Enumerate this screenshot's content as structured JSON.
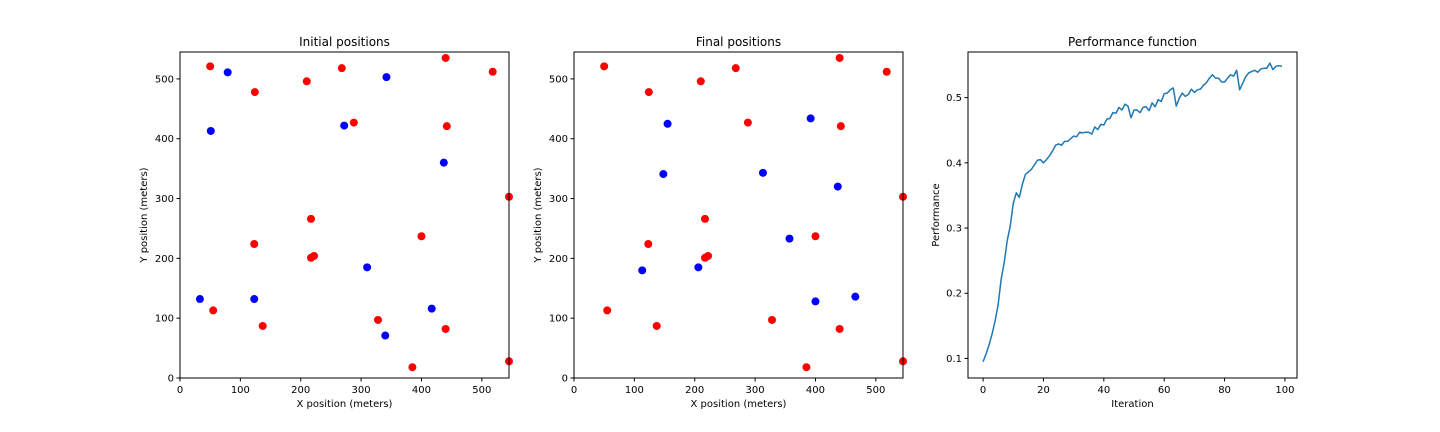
{
  "chart_data": [
    {
      "type": "scatter",
      "title": "Initial positions",
      "xlabel": "X position (meters)",
      "ylabel": "Y position (meters)",
      "xlim": [
        0,
        545
      ],
      "ylim": [
        0,
        545
      ],
      "xticks": [
        0,
        100,
        200,
        300,
        400,
        500
      ],
      "yticks": [
        0,
        100,
        200,
        300,
        400,
        500
      ],
      "grid": false,
      "series": [
        {
          "color": "#ff0000",
          "points": [
            [
              50,
              521
            ],
            [
              124,
              478
            ],
            [
              210,
              496
            ],
            [
              268,
              518
            ],
            [
              440,
              535
            ],
            [
              518,
              512
            ],
            [
              288,
              427
            ],
            [
              442,
              421
            ],
            [
              545,
              303
            ],
            [
              217,
              266
            ],
            [
              123,
              224
            ],
            [
              400,
              237
            ],
            [
              217,
              201
            ],
            [
              222,
              204
            ],
            [
              55,
              113
            ],
            [
              137,
              87
            ],
            [
              328,
              97
            ],
            [
              440,
              82
            ],
            [
              385,
              18
            ],
            [
              545,
              28
            ]
          ]
        },
        {
          "color": "#0000ff",
          "points": [
            [
              79,
              511
            ],
            [
              342,
              503
            ],
            [
              51,
              413
            ],
            [
              272,
              422
            ],
            [
              437,
              360
            ],
            [
              310,
              185
            ],
            [
              33,
              132
            ],
            [
              123,
              132
            ],
            [
              417,
              116
            ],
            [
              340,
              71
            ]
          ]
        }
      ]
    },
    {
      "type": "scatter",
      "title": "Final positions",
      "xlabel": "X position (meters)",
      "ylabel": "Y position (meters)",
      "xlim": [
        0,
        545
      ],
      "ylim": [
        0,
        545
      ],
      "xticks": [
        0,
        100,
        200,
        300,
        400,
        500
      ],
      "yticks": [
        0,
        100,
        200,
        300,
        400,
        500
      ],
      "grid": false,
      "series": [
        {
          "color": "#ff0000",
          "points": [
            [
              50,
              521
            ],
            [
              124,
              478
            ],
            [
              210,
              496
            ],
            [
              268,
              518
            ],
            [
              440,
              535
            ],
            [
              518,
              512
            ],
            [
              288,
              427
            ],
            [
              442,
              421
            ],
            [
              545,
              303
            ],
            [
              217,
              266
            ],
            [
              123,
              224
            ],
            [
              400,
              237
            ],
            [
              217,
              201
            ],
            [
              222,
              204
            ],
            [
              55,
              113
            ],
            [
              137,
              87
            ],
            [
              328,
              97
            ],
            [
              440,
              82
            ],
            [
              385,
              18
            ],
            [
              545,
              28
            ]
          ]
        },
        {
          "color": "#0000ff",
          "points": [
            [
              155,
              425
            ],
            [
              392,
              434
            ],
            [
              148,
              341
            ],
            [
              313,
              343
            ],
            [
              437,
              320
            ],
            [
              357,
              233
            ],
            [
              113,
              180
            ],
            [
              206,
              185
            ],
            [
              466,
              136
            ],
            [
              400,
              128
            ]
          ]
        }
      ]
    },
    {
      "type": "line",
      "title": "Performance function",
      "xlabel": "Iteration",
      "ylabel": "Performance",
      "xlim": [
        -5,
        104
      ],
      "ylim": [
        0.07,
        0.57
      ],
      "xticks": [
        0,
        20,
        40,
        60,
        80,
        100
      ],
      "yticks": [
        0.1,
        0.2,
        0.3,
        0.4,
        0.5
      ],
      "grid": false,
      "series": [
        {
          "color": "#1f77b4",
          "x": [
            0,
            1,
            2,
            3,
            4,
            5,
            6,
            7,
            8,
            9,
            10,
            11,
            12,
            13,
            14,
            15,
            16,
            17,
            18,
            19,
            20,
            21,
            22,
            23,
            24,
            25,
            26,
            27,
            28,
            29,
            30,
            31,
            32,
            33,
            34,
            35,
            36,
            37,
            38,
            39,
            40,
            41,
            42,
            43,
            44,
            45,
            46,
            47,
            48,
            49,
            50,
            51,
            52,
            53,
            54,
            55,
            56,
            57,
            58,
            59,
            60,
            61,
            62,
            63,
            64,
            65,
            66,
            67,
            68,
            69,
            70,
            71,
            72,
            73,
            74,
            75,
            76,
            77,
            78,
            79,
            80,
            81,
            82,
            83,
            84,
            85,
            86,
            87,
            88,
            89,
            90,
            91,
            92,
            93,
            94,
            95,
            96,
            97,
            98,
            99
          ],
          "y": [
            0.095,
            0.107,
            0.121,
            0.138,
            0.158,
            0.183,
            0.222,
            0.247,
            0.281,
            0.303,
            0.338,
            0.354,
            0.347,
            0.367,
            0.382,
            0.386,
            0.39,
            0.397,
            0.404,
            0.405,
            0.4,
            0.405,
            0.411,
            0.418,
            0.427,
            0.429,
            0.427,
            0.433,
            0.433,
            0.437,
            0.441,
            0.44,
            0.447,
            0.446,
            0.447,
            0.447,
            0.444,
            0.455,
            0.451,
            0.459,
            0.458,
            0.467,
            0.468,
            0.477,
            0.476,
            0.485,
            0.481,
            0.49,
            0.487,
            0.469,
            0.481,
            0.481,
            0.477,
            0.485,
            0.486,
            0.48,
            0.492,
            0.486,
            0.497,
            0.494,
            0.506,
            0.507,
            0.512,
            0.515,
            0.487,
            0.499,
            0.507,
            0.502,
            0.505,
            0.513,
            0.508,
            0.512,
            0.513,
            0.519,
            0.523,
            0.53,
            0.535,
            0.53,
            0.53,
            0.524,
            0.524,
            0.53,
            0.535,
            0.533,
            0.542,
            0.512,
            0.522,
            0.532,
            0.538,
            0.54,
            0.542,
            0.539,
            0.544,
            0.545,
            0.545,
            0.553,
            0.543,
            0.548,
            0.549,
            0.548
          ]
        }
      ]
    }
  ]
}
